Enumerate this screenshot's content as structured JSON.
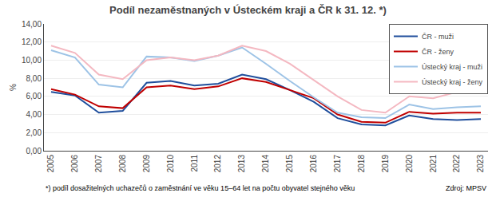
{
  "chart_data": {
    "type": "line",
    "title": "Podíl nezaměstnaných v Ústeckém kraji a ČR k 31. 12. *)",
    "x": [
      2005,
      2006,
      2007,
      2008,
      2009,
      2010,
      2011,
      2012,
      2013,
      2014,
      2015,
      2016,
      2017,
      2018,
      2019,
      2020,
      2021,
      2022,
      2023
    ],
    "series": [
      {
        "name": "ČR - muži",
        "color": "#1f4e9c",
        "values": [
          6.5,
          6.1,
          4.2,
          4.4,
          7.5,
          7.7,
          7.2,
          7.4,
          8.4,
          7.9,
          6.7,
          5.4,
          3.6,
          2.9,
          2.8,
          3.9,
          3.5,
          3.4,
          3.5
        ]
      },
      {
        "name": "ČR - ženy",
        "color": "#c00000",
        "values": [
          6.8,
          6.2,
          4.9,
          4.7,
          7.0,
          7.2,
          6.8,
          7.1,
          8.0,
          7.6,
          6.7,
          5.8,
          4.0,
          3.2,
          3.1,
          4.3,
          4.1,
          4.2,
          4.2
        ]
      },
      {
        "name": "Ústecký kraj - muži",
        "color": "#9dc3e6",
        "values": [
          11.1,
          10.3,
          7.3,
          7.0,
          10.4,
          10.3,
          9.9,
          10.5,
          11.4,
          9.6,
          7.7,
          5.9,
          4.2,
          3.7,
          3.6,
          5.1,
          4.6,
          4.8,
          4.9
        ]
      },
      {
        "name": "Ústecký kraj - ženy",
        "color": "#f4b8c1",
        "values": [
          11.6,
          10.8,
          8.4,
          7.9,
          10.0,
          10.3,
          10.0,
          10.5,
          11.6,
          11.0,
          9.6,
          7.8,
          6.0,
          4.5,
          4.2,
          6.0,
          5.8,
          6.5,
          6.6
        ]
      }
    ],
    "ylabel": "%",
    "xlim": [
      2004.7,
      2023.3
    ],
    "xticks": [
      2005,
      2006,
      2007,
      2008,
      2009,
      2010,
      2011,
      2012,
      2013,
      2014,
      2015,
      2016,
      2017,
      2018,
      2019,
      2020,
      2021,
      2022,
      2023
    ],
    "ylim": [
      0,
      14
    ],
    "yticks": [
      {
        "value": 0,
        "label": "0,00"
      },
      {
        "value": 2,
        "label": "2,00"
      },
      {
        "value": 4,
        "label": "4,00"
      },
      {
        "value": 6,
        "label": "6,00"
      },
      {
        "value": 8,
        "label": "8,00"
      },
      {
        "value": 10,
        "label": "10,00"
      },
      {
        "value": 12,
        "label": "12,00"
      },
      {
        "value": 14,
        "label": "14,00"
      }
    ],
    "grid": "y",
    "legend": "upper right",
    "annotations": [
      "*) podíl dosažitelných uchazečů o zaměstnání ve věku 15–64 let na počtu obyvatel stejného věku",
      "Zdroj: MPSV"
    ]
  }
}
